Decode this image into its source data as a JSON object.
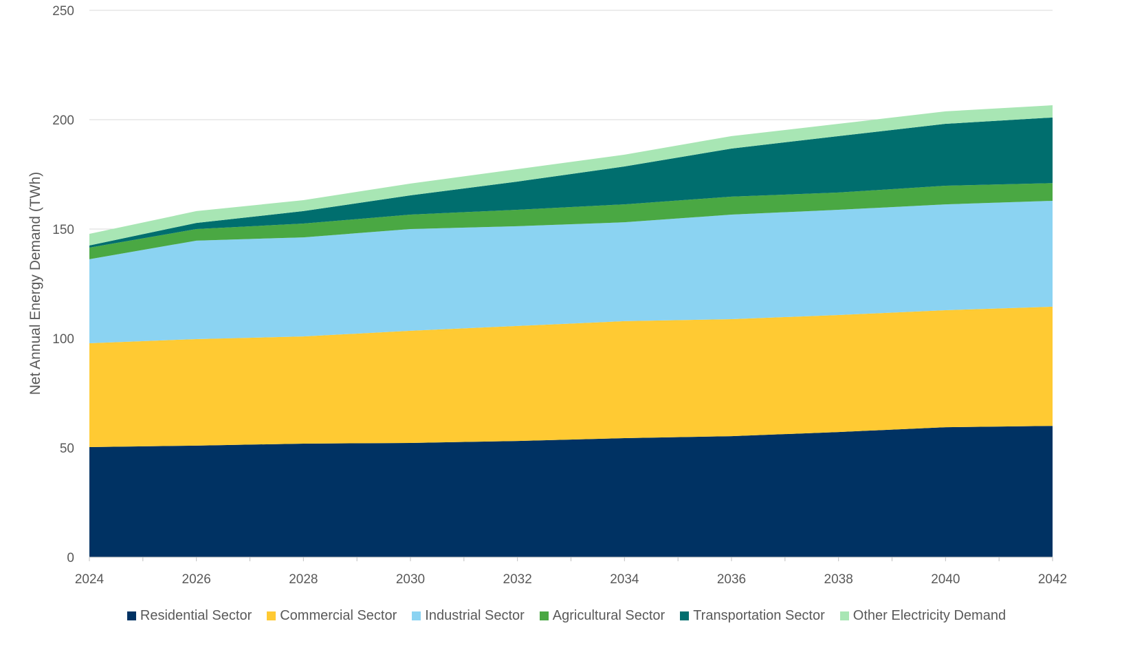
{
  "chart_data": {
    "type": "area",
    "stacked": true,
    "title": "",
    "xlabel": "",
    "ylabel": "Net Annual Energy Demand (TWh)",
    "ylim": [
      0,
      250
    ],
    "yticks": [
      0,
      50,
      100,
      150,
      200,
      250
    ],
    "xlim": [
      2024,
      2042
    ],
    "xticks": [
      2024,
      2026,
      2028,
      2030,
      2032,
      2034,
      2036,
      2038,
      2040,
      2042
    ],
    "grid": "horizontal",
    "legend_position": "bottom",
    "x": [
      2024,
      2026,
      2028,
      2030,
      2032,
      2034,
      2036,
      2038,
      2040,
      2042
    ],
    "series": [
      {
        "name": "Residential Sector",
        "color": "#003263",
        "values": [
          50.3,
          51.0,
          51.9,
          52.2,
          53.1,
          54.4,
          55.3,
          57.2,
          59.4,
          60.0
        ]
      },
      {
        "name": "Commercial Sector",
        "color": "#FFCA33",
        "values": [
          47.5,
          48.7,
          49.0,
          51.3,
          52.6,
          53.5,
          53.5,
          53.5,
          53.5,
          54.5
        ]
      },
      {
        "name": "Industrial Sector",
        "color": "#8BD3F2",
        "values": [
          38.4,
          45.0,
          45.3,
          46.5,
          45.6,
          45.2,
          47.8,
          48.1,
          48.4,
          48.4
        ]
      },
      {
        "name": "Agricultural Sector",
        "color": "#4AA843",
        "values": [
          5.3,
          5.3,
          6.3,
          6.6,
          7.5,
          8.2,
          8.2,
          7.9,
          8.5,
          8.1
        ]
      },
      {
        "name": "Transportation Sector",
        "color": "#006E6E",
        "values": [
          1.0,
          2.8,
          5.7,
          8.8,
          12.9,
          17.3,
          22.0,
          25.8,
          28.3,
          30.0
        ]
      },
      {
        "name": "Other Electricity Demand",
        "color": "#A8E6B4",
        "values": [
          5.3,
          5.4,
          5.0,
          5.4,
          5.7,
          5.4,
          5.7,
          5.6,
          5.7,
          5.6
        ]
      }
    ]
  }
}
